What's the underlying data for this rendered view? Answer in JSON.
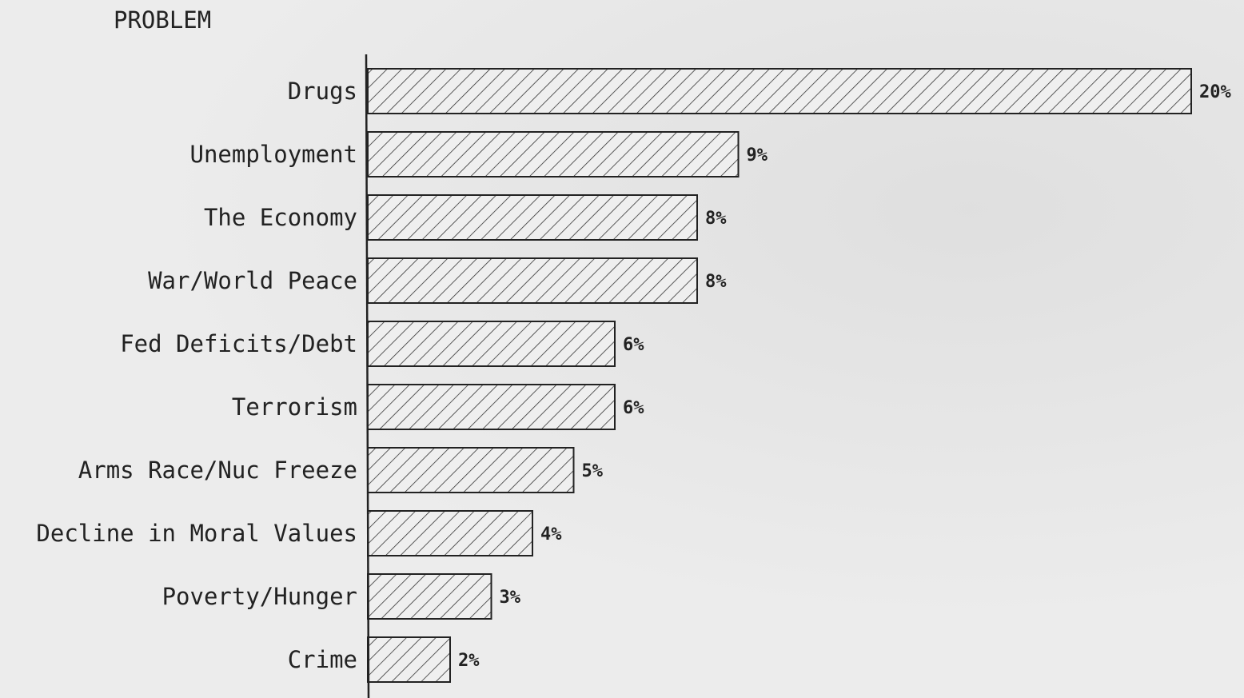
{
  "chart_data": {
    "type": "bar",
    "orientation": "horizontal",
    "title": "PROBLEM",
    "categories": [
      "Drugs",
      "Unemployment",
      "The Economy",
      "War/World Peace",
      "Fed Deficits/Debt",
      "Terrorism",
      "Arms Race/Nuc Freeze",
      "Decline in Moral Values",
      "Poverty/Hunger",
      "Crime"
    ],
    "values": [
      20,
      9,
      8,
      8,
      6,
      6,
      5,
      4,
      3,
      2
    ],
    "value_labels": [
      "20%",
      "9%",
      "8%",
      "8%",
      "6%",
      "6%",
      "5%",
      "4%",
      "3%",
      "2%"
    ],
    "unit": "%",
    "xlim": [
      0,
      20
    ],
    "grid": false,
    "bar_fill": "hatched",
    "colors": {
      "bar_stroke": "#222222",
      "hatch": "#333333",
      "bar_fill": "#eeeeee",
      "text": "#222222"
    }
  }
}
